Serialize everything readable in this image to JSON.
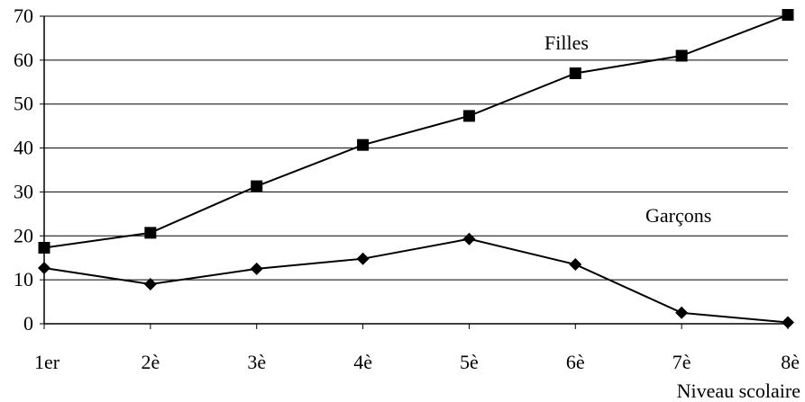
{
  "chart_data": {
    "type": "line",
    "title": "",
    "xlabel": "Niveau scolaire",
    "ylabel": "",
    "categories": [
      "1er",
      "2è",
      "3è",
      "4è",
      "5è",
      "6è",
      "7è",
      "8è"
    ],
    "ylim": [
      0,
      70
    ],
    "yticks": [
      0,
      10,
      20,
      30,
      40,
      50,
      60,
      70
    ],
    "grid": true,
    "series": [
      {
        "name": "Filles",
        "marker": "square",
        "color": "#000000",
        "values": [
          17.3,
          20.7,
          31.3,
          40.7,
          47.3,
          57,
          61,
          70.3
        ]
      },
      {
        "name": "Garçons",
        "marker": "diamond",
        "color": "#000000",
        "values": [
          12.7,
          9,
          12.5,
          14.8,
          19.3,
          13.5,
          2.5,
          0.3
        ]
      }
    ]
  }
}
